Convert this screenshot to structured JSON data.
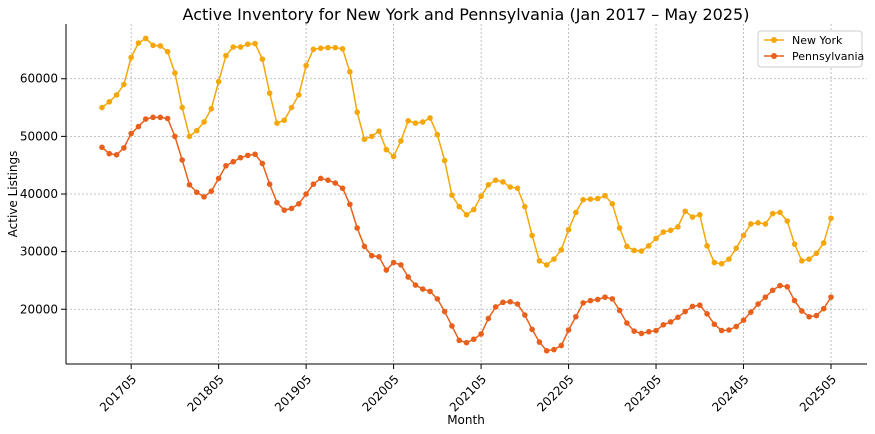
{
  "chart_data": {
    "type": "line",
    "title": "Active Inventory for New York and Pennsylvania (Jan 2017 – May 2025)",
    "xlabel": "Month",
    "ylabel": "Active Listings",
    "x_tick_labels": [
      "201705",
      "201805",
      "201905",
      "202005",
      "202105",
      "202205",
      "202305",
      "202405",
      "202505"
    ],
    "y_tick_labels": [
      "20000",
      "30000",
      "40000",
      "50000",
      "60000"
    ],
    "ylim": [
      10500,
      69500
    ],
    "grid": true,
    "legend_position": "top-right",
    "x": [
      "201701",
      "201702",
      "201703",
      "201704",
      "201705",
      "201706",
      "201707",
      "201708",
      "201709",
      "201710",
      "201711",
      "201712",
      "201801",
      "201802",
      "201803",
      "201804",
      "201805",
      "201806",
      "201807",
      "201808",
      "201809",
      "201810",
      "201811",
      "201812",
      "201901",
      "201902",
      "201903",
      "201904",
      "201905",
      "201906",
      "201907",
      "201908",
      "201909",
      "201910",
      "201911",
      "201912",
      "202001",
      "202002",
      "202003",
      "202004",
      "202005",
      "202006",
      "202007",
      "202008",
      "202009",
      "202010",
      "202011",
      "202012",
      "202101",
      "202102",
      "202103",
      "202104",
      "202105",
      "202106",
      "202107",
      "202108",
      "202109",
      "202110",
      "202111",
      "202112",
      "202201",
      "202202",
      "202203",
      "202204",
      "202205",
      "202206",
      "202207",
      "202208",
      "202209",
      "202210",
      "202211",
      "202212",
      "202301",
      "202302",
      "202303",
      "202304",
      "202305",
      "202306",
      "202307",
      "202308",
      "202309",
      "202310",
      "202311",
      "202312",
      "202401",
      "202402",
      "202403",
      "202404",
      "202405",
      "202406",
      "202407",
      "202408",
      "202409",
      "202410",
      "202411",
      "202412",
      "202501",
      "202502",
      "202503",
      "202504",
      "202505"
    ],
    "series": [
      {
        "name": "New York",
        "color": "#F5A70A",
        "values": [
          55000,
          56000,
          57200,
          59000,
          63700,
          66200,
          67000,
          65800,
          65700,
          64700,
          61000,
          55000,
          50000,
          51000,
          52500,
          54800,
          59500,
          64000,
          65500,
          65500,
          66000,
          66100,
          63400,
          57500,
          52300,
          52800,
          55000,
          57200,
          62300,
          65100,
          65300,
          65400,
          65400,
          65200,
          61200,
          54200,
          49500,
          50000,
          50900,
          47700,
          46500,
          49200,
          52700,
          52300,
          52500,
          53200,
          50300,
          45800,
          39800,
          37800,
          36400,
          37300,
          39600,
          41600,
          42400,
          42100,
          41200,
          41000,
          37800,
          32800,
          28400,
          27700,
          28700,
          30300,
          33800,
          36800,
          39000,
          39100,
          39200,
          39700,
          38300,
          34100,
          30900,
          30200,
          30100,
          31000,
          32300,
          33400,
          33700,
          34300,
          37000,
          36000,
          36400,
          31000,
          28100,
          27900,
          28700,
          30600,
          32800,
          34800,
          35000,
          34800,
          36600,
          36800,
          35300,
          31300,
          28400,
          28700,
          29700,
          31500,
          35800
        ]
      },
      {
        "name": "Pennsylvania",
        "color": "#E8601C",
        "values": [
          48100,
          47000,
          46800,
          48000,
          50500,
          51700,
          53000,
          53300,
          53300,
          53100,
          50000,
          45900,
          41600,
          40300,
          39500,
          40500,
          42700,
          44900,
          45600,
          46300,
          46700,
          46900,
          45300,
          41700,
          38500,
          37200,
          37500,
          38300,
          40000,
          41700,
          42700,
          42400,
          41900,
          41000,
          38200,
          34100,
          30900,
          29300,
          29100,
          26800,
          28100,
          27700,
          25600,
          24200,
          23500,
          23100,
          21800,
          19600,
          17100,
          14600,
          14200,
          14800,
          15700,
          18400,
          20400,
          21200,
          21300,
          20900,
          19000,
          16500,
          14300,
          12800,
          13000,
          13700,
          16400,
          18700,
          21100,
          21500,
          21700,
          22100,
          21800,
          19800,
          17600,
          16200,
          15800,
          16100,
          16300,
          17300,
          17800,
          18600,
          19600,
          20500,
          20700,
          19200,
          17400,
          16300,
          16400,
          17000,
          18100,
          19500,
          20900,
          22100,
          23300,
          24100,
          23900,
          21500,
          19700,
          18700,
          18900,
          20100,
          22100
        ]
      }
    ]
  }
}
